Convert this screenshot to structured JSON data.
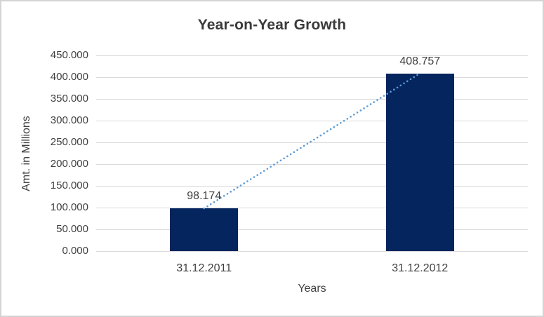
{
  "chart_data": {
    "type": "bar",
    "title": "Year-on-Year Growth",
    "xlabel": "Years",
    "ylabel": "Amt. in Millions",
    "categories": [
      "31.12.2011",
      "31.12.2012"
    ],
    "values": [
      98.174,
      408.757
    ],
    "data_labels": [
      "98.174",
      "408.757"
    ],
    "ylim": [
      0,
      450
    ],
    "grid": true,
    "legend": "none",
    "yticks": [
      {
        "value": 0,
        "label": "0.000"
      },
      {
        "value": 50,
        "label": "50.000"
      },
      {
        "value": 100,
        "label": "100.000"
      },
      {
        "value": 150,
        "label": "150.000"
      },
      {
        "value": 200,
        "label": "200.000"
      },
      {
        "value": 250,
        "label": "250.000"
      },
      {
        "value": 300,
        "label": "300.000"
      },
      {
        "value": 350,
        "label": "350.000"
      },
      {
        "value": 400,
        "label": "400.000"
      },
      {
        "value": 450,
        "label": "450.000"
      }
    ],
    "trendline": {
      "style": "dotted",
      "from_category": "31.12.2011",
      "to_category": "31.12.2012",
      "color": "#5b9bd5"
    },
    "colors": {
      "bar": "#05255e",
      "gridline": "#d9d9d9",
      "text": "#404040",
      "title": "#3a3a3a",
      "border": "#d4d4d4",
      "background": "#ffffff"
    }
  }
}
